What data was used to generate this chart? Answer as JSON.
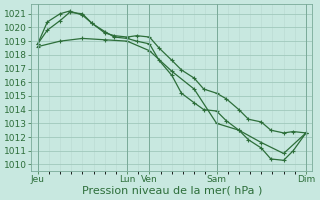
{
  "bg_color": "#c8e8e0",
  "grid_color_major": "#a0c8bc",
  "grid_color_minor": "#b8d8d0",
  "line_color": "#2d6e3a",
  "ylim": [
    1009.5,
    1021.7
  ],
  "yticks": [
    1010,
    1011,
    1012,
    1013,
    1014,
    1015,
    1016,
    1017,
    1018,
    1019,
    1020,
    1021
  ],
  "xlabel": "Pression niveau de la mer( hPa )",
  "xlabel_fontsize": 8,
  "tick_fontsize": 6.5,
  "xtick_labels": [
    "Jeu",
    "Lun",
    "Ven",
    "Sam",
    "Dim"
  ],
  "xtick_positions": [
    0,
    28,
    35,
    56,
    84
  ],
  "xlim": [
    -2,
    86
  ],
  "vline_positions": [
    0,
    28,
    35,
    56,
    84
  ],
  "line1_x": [
    0,
    3,
    7,
    10,
    14,
    17,
    21,
    24,
    28,
    31,
    35,
    38,
    42,
    45,
    49,
    52,
    56,
    59,
    63,
    66,
    70,
    73,
    77,
    80,
    84
  ],
  "line1_y": [
    1018.8,
    1020.4,
    1021.0,
    1021.2,
    1020.9,
    1020.3,
    1019.6,
    1019.4,
    1019.3,
    1019.4,
    1019.3,
    1018.5,
    1017.6,
    1016.9,
    1016.3,
    1015.5,
    1015.2,
    1014.8,
    1014.0,
    1013.3,
    1013.1,
    1012.5,
    1012.3,
    1012.4,
    1012.3
  ],
  "line2_x": [
    0,
    3,
    7,
    10,
    14,
    17,
    21,
    24,
    28,
    31,
    35,
    38,
    42,
    45,
    49,
    52,
    56,
    59,
    63,
    66,
    70,
    73,
    77,
    80,
    84
  ],
  "line2_y": [
    1018.8,
    1019.8,
    1020.5,
    1021.1,
    1021.0,
    1020.3,
    1019.7,
    1019.3,
    1019.2,
    1019.0,
    1018.8,
    1017.6,
    1016.5,
    1015.2,
    1014.5,
    1014.0,
    1013.9,
    1013.2,
    1012.5,
    1011.8,
    1011.2,
    1010.4,
    1010.3,
    1011.0,
    1012.3
  ],
  "line3_x": [
    0,
    7,
    14,
    21,
    28,
    35,
    42,
    49,
    56,
    63,
    70,
    77,
    84
  ],
  "line3_y": [
    1018.6,
    1019.0,
    1019.2,
    1019.1,
    1019.0,
    1018.3,
    1016.8,
    1015.5,
    1013.0,
    1012.5,
    1011.6,
    1010.8,
    1012.3
  ],
  "figsize": [
    3.2,
    2.0
  ],
  "dpi": 100
}
